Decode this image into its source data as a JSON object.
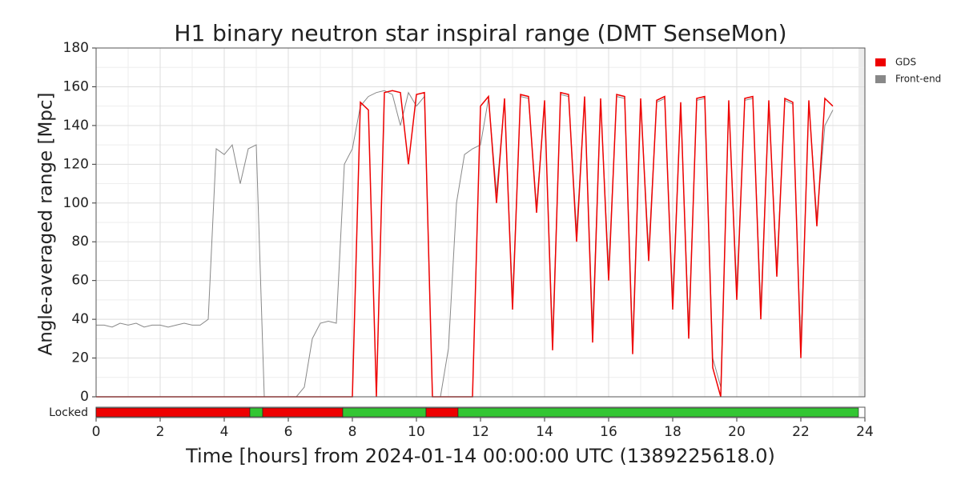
{
  "chart_data": {
    "type": "line",
    "title": "H1 binary neutron star inspiral range (DMT SenseMon)",
    "x_label": "Time [hours] from 2024-01-14 00:00:00 UTC (1389225618.0)",
    "y_label": "Angle-averaged range [Mpc]",
    "xlim": [
      0,
      24
    ],
    "xticks": [
      0,
      2,
      4,
      6,
      8,
      10,
      12,
      14,
      16,
      18,
      20,
      22,
      24
    ],
    "ylim": [
      0,
      180
    ],
    "yticks": [
      0,
      20,
      40,
      60,
      80,
      100,
      120,
      140,
      160,
      180
    ],
    "grid": true,
    "legend": "upper right",
    "x": [
      0,
      0.25,
      0.5,
      0.75,
      1,
      1.25,
      1.5,
      1.75,
      2,
      2.25,
      2.5,
      2.75,
      3,
      3.25,
      3.5,
      3.75,
      4,
      4.25,
      4.5,
      4.75,
      5,
      5.25,
      5.5,
      5.75,
      6,
      6.25,
      6.5,
      6.75,
      7,
      7.25,
      7.5,
      7.75,
      8,
      8.25,
      8.5,
      8.75,
      9,
      9.25,
      9.5,
      9.75,
      10,
      10.25,
      10.5,
      10.75,
      11,
      11.25,
      11.5,
      11.75,
      12,
      12.25,
      12.5,
      12.75,
      13,
      13.25,
      13.5,
      13.75,
      14,
      14.25,
      14.5,
      14.75,
      15,
      15.25,
      15.5,
      15.75,
      16,
      16.25,
      16.5,
      16.75,
      17,
      17.25,
      17.5,
      17.75,
      18,
      18.25,
      18.5,
      18.75,
      19,
      19.25,
      19.5,
      19.75,
      20,
      20.25,
      20.5,
      20.75,
      21,
      21.25,
      21.5,
      21.75,
      22,
      22.25,
      22.5,
      22.75,
      23
    ],
    "series": [
      {
        "name": "GDS",
        "color": "#ee0000",
        "values": [
          0,
          0,
          0,
          0,
          0,
          0,
          0,
          0,
          0,
          0,
          0,
          0,
          0,
          0,
          0,
          0,
          0,
          0,
          0,
          0,
          0,
          0,
          0,
          0,
          0,
          0,
          0,
          0,
          0,
          0,
          0,
          0,
          0,
          152,
          148,
          0,
          157,
          158,
          157,
          120,
          156,
          157,
          0,
          0,
          0,
          0,
          0,
          0,
          150,
          155,
          100,
          154,
          45,
          156,
          155,
          95,
          153,
          24,
          157,
          156,
          80,
          155,
          28,
          154,
          60,
          156,
          155,
          22,
          154,
          70,
          153,
          155,
          45,
          152,
          30,
          154,
          155,
          15,
          0,
          153,
          50,
          154,
          155,
          40,
          153,
          62,
          154,
          152,
          20,
          153,
          88,
          154,
          150
        ]
      },
      {
        "name": "Front-end",
        "color": "#888888",
        "values": [
          37,
          37,
          36,
          38,
          37,
          38,
          36,
          37,
          37,
          36,
          37,
          38,
          37,
          37,
          40,
          128,
          125,
          130,
          110,
          128,
          130,
          0,
          0,
          0,
          0,
          0,
          5,
          30,
          38,
          39,
          38,
          120,
          128,
          150,
          155,
          157,
          158,
          156,
          140,
          157,
          150,
          155,
          0,
          0,
          25,
          100,
          125,
          128,
          130,
          154,
          105,
          153,
          50,
          155,
          154,
          98,
          152,
          30,
          156,
          155,
          85,
          154,
          35,
          153,
          65,
          155,
          154,
          28,
          153,
          75,
          152,
          154,
          50,
          151,
          35,
          153,
          154,
          20,
          5,
          152,
          55,
          153,
          154,
          45,
          152,
          66,
          153,
          151,
          25,
          152,
          92,
          140,
          148
        ]
      }
    ],
    "state": {
      "label": "Locked",
      "segments": [
        {
          "start": 0,
          "end": 4.8,
          "color": "#ee0000"
        },
        {
          "start": 4.8,
          "end": 5.2,
          "color": "#33c633"
        },
        {
          "start": 5.2,
          "end": 7.7,
          "color": "#ee0000"
        },
        {
          "start": 7.7,
          "end": 10.3,
          "color": "#33c633"
        },
        {
          "start": 10.3,
          "end": 11.3,
          "color": "#ee0000"
        },
        {
          "start": 11.3,
          "end": 23.8,
          "color": "#33c633"
        }
      ]
    }
  }
}
